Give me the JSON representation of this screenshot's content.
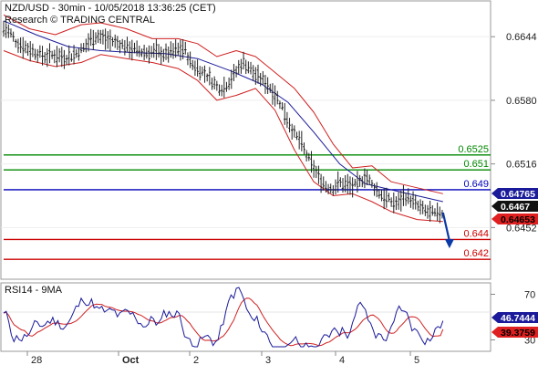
{
  "header": {
    "title": "NZD/USD - 30min - 10/05/2018 13:36:25 (CET)",
    "subtitle": "Research © TRADING CENTRAL"
  },
  "colors": {
    "price_bars": "#222222",
    "bollinger": "#d02020",
    "moving_average": "#1a1a9a",
    "support": "#cc0000",
    "resistance": "#008800",
    "pivot": "#0000bb",
    "arrow": "#0a3aa8",
    "rsi": "#1a1a9a",
    "rsi_ma": "#d02020",
    "axis_text": "#222222"
  },
  "chart_data": [
    {
      "type": "line",
      "name": "price-panel",
      "x_ticks": [
        "28",
        "Oct",
        "2",
        "3",
        "4",
        "5"
      ],
      "y_ticks": [
        "0.6644",
        "0.6580",
        "0.6516",
        "0.6452"
      ],
      "ylim": [
        0.64,
        0.668
      ],
      "levels": [
        {
          "id": "r2",
          "value": 0.6525,
          "label": "0.6525",
          "kind": "resistance"
        },
        {
          "id": "r1",
          "value": 0.651,
          "label": "0.651",
          "kind": "resistance"
        },
        {
          "id": "pivot",
          "value": 0.649,
          "label": "0.649",
          "kind": "pivot"
        },
        {
          "id": "s1",
          "value": 0.644,
          "label": "0.644",
          "kind": "support"
        },
        {
          "id": "s2",
          "value": 0.642,
          "label": "0.642",
          "kind": "support"
        }
      ],
      "price_tags": [
        {
          "id": "tag-high",
          "value": 0.64765,
          "label": "0.64765",
          "fill": "#1a1a9a",
          "text": "#ffffff"
        },
        {
          "id": "tag-last",
          "value": 0.6467,
          "label": "0.6467",
          "fill": "#111111",
          "text": "#ffffff"
        },
        {
          "id": "tag-low",
          "value": 0.64653,
          "label": "0.64653",
          "fill": "#e02020",
          "text": "#000000"
        }
      ],
      "price_path": [
        [
          0,
          0.6652
        ],
        [
          2,
          0.6648
        ],
        [
          4,
          0.6638
        ],
        [
          7,
          0.6633
        ],
        [
          10,
          0.6628
        ],
        [
          13,
          0.6624
        ],
        [
          16,
          0.6626
        ],
        [
          19,
          0.6623
        ],
        [
          22,
          0.6626
        ],
        [
          25,
          0.6633
        ],
        [
          27,
          0.6642
        ],
        [
          29,
          0.6645
        ],
        [
          32,
          0.6641
        ],
        [
          35,
          0.6638
        ],
        [
          38,
          0.6634
        ],
        [
          41,
          0.663
        ],
        [
          44,
          0.6628
        ],
        [
          47,
          0.6629
        ],
        [
          50,
          0.6626
        ],
        [
          53,
          0.663
        ],
        [
          56,
          0.6632
        ],
        [
          58,
          0.6617
        ],
        [
          60,
          0.6612
        ],
        [
          63,
          0.6605
        ],
        [
          66,
          0.6594
        ],
        [
          68,
          0.6592
        ],
        [
          70,
          0.66
        ],
        [
          72,
          0.6609
        ],
        [
          74,
          0.6619
        ],
        [
          76,
          0.6613
        ],
        [
          78,
          0.6605
        ],
        [
          80,
          0.6601
        ],
        [
          82,
          0.6595
        ],
        [
          84,
          0.6586
        ],
        [
          86,
          0.6575
        ],
        [
          88,
          0.656
        ],
        [
          90,
          0.6546
        ],
        [
          92,
          0.6538
        ],
        [
          94,
          0.6523
        ],
        [
          96,
          0.6512
        ],
        [
          98,
          0.65
        ],
        [
          100,
          0.6493
        ],
        [
          102,
          0.6492
        ],
        [
          104,
          0.6497
        ],
        [
          106,
          0.6495
        ],
        [
          108,
          0.6493
        ],
        [
          110,
          0.6496
        ],
        [
          112,
          0.6505
        ],
        [
          114,
          0.6495
        ],
        [
          116,
          0.6488
        ],
        [
          118,
          0.6482
        ],
        [
          120,
          0.6478
        ],
        [
          122,
          0.6476
        ],
        [
          124,
          0.6484
        ],
        [
          126,
          0.648
        ],
        [
          128,
          0.6474
        ],
        [
          130,
          0.6469
        ],
        [
          132,
          0.6467
        ],
        [
          134,
          0.6465
        ],
        [
          136,
          0.6467
        ]
      ],
      "moving_average_path": [
        [
          0,
          0.666
        ],
        [
          10,
          0.6646
        ],
        [
          20,
          0.6634
        ],
        [
          30,
          0.663
        ],
        [
          40,
          0.6628
        ],
        [
          50,
          0.6627
        ],
        [
          60,
          0.6622
        ],
        [
          70,
          0.661
        ],
        [
          80,
          0.6596
        ],
        [
          88,
          0.6578
        ],
        [
          96,
          0.6548
        ],
        [
          104,
          0.6516
        ],
        [
          112,
          0.6496
        ],
        [
          120,
          0.649
        ],
        [
          128,
          0.6484
        ],
        [
          136,
          0.6478
        ]
      ],
      "bollinger_upper_path": [
        [
          0,
          0.6666
        ],
        [
          8,
          0.6652
        ],
        [
          16,
          0.6646
        ],
        [
          24,
          0.6656
        ],
        [
          30,
          0.6658
        ],
        [
          38,
          0.6652
        ],
        [
          46,
          0.6642
        ],
        [
          54,
          0.6642
        ],
        [
          60,
          0.6637
        ],
        [
          66,
          0.6624
        ],
        [
          72,
          0.663
        ],
        [
          78,
          0.6624
        ],
        [
          84,
          0.6608
        ],
        [
          90,
          0.6592
        ],
        [
          96,
          0.6568
        ],
        [
          102,
          0.6536
        ],
        [
          108,
          0.6512
        ],
        [
          114,
          0.6514
        ],
        [
          120,
          0.6498
        ],
        [
          128,
          0.6492
        ],
        [
          136,
          0.6486
        ]
      ],
      "bollinger_lower_path": [
        [
          0,
          0.663
        ],
        [
          8,
          0.662
        ],
        [
          16,
          0.6614
        ],
        [
          24,
          0.6618
        ],
        [
          30,
          0.6626
        ],
        [
          38,
          0.6622
        ],
        [
          46,
          0.6618
        ],
        [
          54,
          0.6612
        ],
        [
          60,
          0.66
        ],
        [
          66,
          0.658
        ],
        [
          72,
          0.6585
        ],
        [
          78,
          0.6592
        ],
        [
          84,
          0.657
        ],
        [
          90,
          0.653
        ],
        [
          96,
          0.6498
        ],
        [
          102,
          0.6484
        ],
        [
          108,
          0.6486
        ],
        [
          114,
          0.6478
        ],
        [
          120,
          0.6468
        ],
        [
          128,
          0.646
        ],
        [
          136,
          0.6458
        ]
      ],
      "forecast_arrow": {
        "from": [
          136,
          0.6467
        ],
        "to": [
          138,
          0.6432
        ]
      }
    },
    {
      "type": "line",
      "name": "rsi-panel",
      "title": "RSI14 - 9MA",
      "y_ticks": [
        "70",
        "30"
      ],
      "ylim": [
        20,
        80
      ],
      "rsi_last": 46.7444,
      "ma_last": 39.3759,
      "rsi_tag": {
        "label": "46.7444",
        "fill": "#1a1a9a",
        "text": "#ffffff"
      },
      "ma_tag": {
        "label": "39.3759",
        "fill": "#e02020",
        "text": "#000000"
      }
    }
  ]
}
